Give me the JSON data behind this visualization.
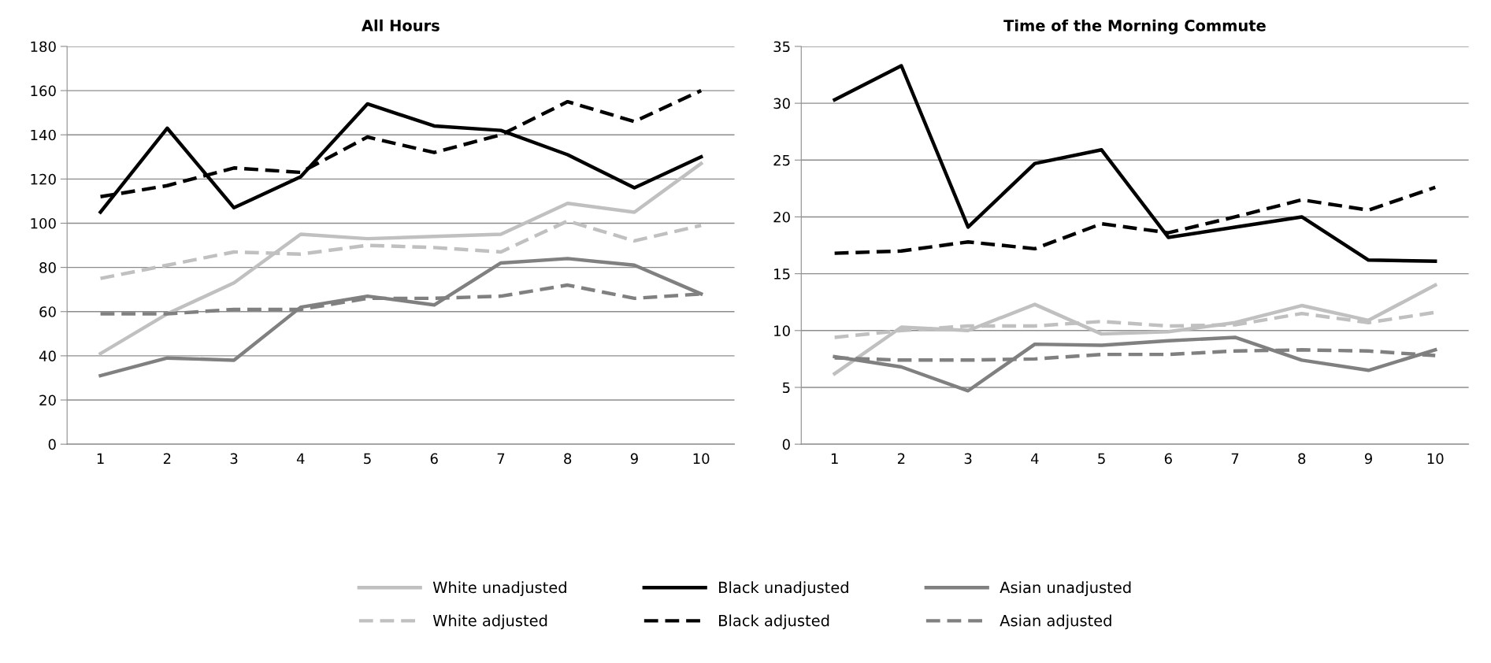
{
  "chart_data": [
    {
      "type": "line",
      "title": "All Hours",
      "categories": [
        "1",
        "2",
        "3",
        "4",
        "5",
        "6",
        "7",
        "8",
        "9",
        "10"
      ],
      "ylim": [
        0,
        180
      ],
      "yticks": [
        0,
        20,
        40,
        60,
        80,
        100,
        120,
        140,
        160,
        180
      ],
      "grid": "y",
      "legend": "bottom",
      "marker": "none",
      "series": [
        {
          "name": "White unadjusted",
          "color": "#c0c0c0",
          "line_style": "solid",
          "values": [
            41,
            59,
            73,
            95,
            93,
            94,
            95,
            109,
            105,
            127
          ]
        },
        {
          "name": "Black unadjusted",
          "color": "#000000",
          "line_style": "solid",
          "values": [
            105,
            143,
            107,
            121,
            154,
            144,
            142,
            131,
            116,
            130
          ]
        },
        {
          "name": "Asian unadjusted",
          "color": "#808080",
          "line_style": "solid",
          "values": [
            31,
            39,
            38,
            62,
            67,
            63,
            82,
            84,
            81,
            68
          ]
        },
        {
          "name": "White adjusted",
          "color": "#c0c0c0",
          "line_style": "dashed",
          "values": [
            75,
            81,
            87,
            86,
            90,
            89,
            87,
            101,
            92,
            99
          ]
        },
        {
          "name": "Black adjusted",
          "color": "#000000",
          "line_style": "dashed",
          "values": [
            112,
            117,
            125,
            123,
            139,
            132,
            140,
            155,
            146,
            160
          ]
        },
        {
          "name": "Asian adjusted",
          "color": "#808080",
          "line_style": "dashed",
          "values": [
            59,
            59,
            61,
            61,
            66,
            66,
            67,
            72,
            66,
            68
          ]
        }
      ]
    },
    {
      "type": "line",
      "title": "Time of the Morning Commute",
      "categories": [
        "1",
        "2",
        "3",
        "4",
        "5",
        "6",
        "7",
        "8",
        "9",
        "10"
      ],
      "ylim": [
        0,
        35
      ],
      "yticks": [
        0,
        5,
        10,
        15,
        20,
        25,
        30,
        35
      ],
      "grid": "y",
      "marker": "none",
      "series": [
        {
          "color": "#c0c0c0",
          "line_style": "solid",
          "values": [
            6.2,
            10.3,
            10.0,
            12.3,
            9.7,
            9.9,
            10.7,
            12.2,
            10.9,
            14.0
          ]
        },
        {
          "color": "#000000",
          "line_style": "solid",
          "values": [
            30.3,
            33.3,
            19.1,
            24.7,
            25.9,
            18.2,
            19.1,
            20.0,
            16.2,
            16.1
          ]
        },
        {
          "color": "#808080",
          "line_style": "solid",
          "values": [
            7.7,
            6.8,
            4.7,
            8.8,
            8.7,
            9.1,
            9.4,
            7.4,
            6.5,
            8.3
          ]
        },
        {
          "color": "#c0c0c0",
          "line_style": "dashed",
          "values": [
            9.4,
            10.0,
            10.4,
            10.4,
            10.8,
            10.4,
            10.5,
            11.5,
            10.7,
            11.6
          ]
        },
        {
          "color": "#000000",
          "line_style": "dashed",
          "values": [
            16.8,
            17.0,
            17.8,
            17.2,
            19.4,
            18.6,
            20.0,
            21.5,
            20.6,
            22.6
          ]
        },
        {
          "color": "#808080",
          "line_style": "dashed",
          "values": [
            7.6,
            7.4,
            7.4,
            7.5,
            7.9,
            7.9,
            8.2,
            8.3,
            8.2,
            7.8
          ]
        }
      ]
    }
  ]
}
